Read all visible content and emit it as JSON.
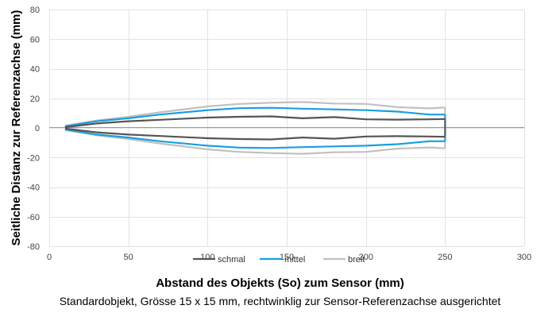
{
  "chart_data": {
    "type": "line",
    "xlabel": "Abstand des Objekts (So) zum Sensor (mm)",
    "ylabel": "Seitliche Distanz zur Referenzachse (mm)",
    "caption": "Standardobjekt, Grösse 15 x 15 mm, rechtwinklig zur Sensor-Referenzachse ausgerichtet",
    "xlim": [
      0,
      300
    ],
    "ylim": [
      -80,
      80
    ],
    "xticks": [
      "0",
      "50",
      "100",
      "150",
      "200",
      "250",
      "300"
    ],
    "yticks": [
      "80",
      "60",
      "40",
      "20",
      "0",
      "-20",
      "-40",
      "-60",
      "-80"
    ],
    "grid": true,
    "legend_position": "bottom",
    "series": [
      {
        "name": "schmal",
        "color": "#555555",
        "upper": [
          [
            10,
            0.5
          ],
          [
            30,
            3
          ],
          [
            50,
            4.5
          ],
          [
            70,
            5.5
          ],
          [
            100,
            7
          ],
          [
            120,
            7.5
          ],
          [
            140,
            7.8
          ],
          [
            160,
            6.5
          ],
          [
            180,
            7.3
          ],
          [
            200,
            5.8
          ],
          [
            220,
            5.6
          ],
          [
            240,
            5.8
          ],
          [
            250,
            6
          ]
        ],
        "lower": [
          [
            10,
            -0.5
          ],
          [
            30,
            -3
          ],
          [
            50,
            -4.5
          ],
          [
            70,
            -5.5
          ],
          [
            100,
            -7
          ],
          [
            120,
            -7.5
          ],
          [
            140,
            -7.8
          ],
          [
            160,
            -6.5
          ],
          [
            180,
            -7.3
          ],
          [
            200,
            -5.8
          ],
          [
            220,
            -5.6
          ],
          [
            240,
            -5.8
          ],
          [
            250,
            -6
          ]
        ]
      },
      {
        "name": "mittel",
        "color": "#1a9ee0",
        "upper": [
          [
            10,
            1
          ],
          [
            30,
            4.5
          ],
          [
            50,
            6.5
          ],
          [
            70,
            9
          ],
          [
            100,
            12
          ],
          [
            120,
            13.3
          ],
          [
            140,
            13.6
          ],
          [
            160,
            13
          ],
          [
            180,
            12.5
          ],
          [
            200,
            12
          ],
          [
            220,
            11
          ],
          [
            240,
            9
          ],
          [
            250,
            9
          ]
        ],
        "lower": [
          [
            10,
            -1
          ],
          [
            30,
            -4.5
          ],
          [
            50,
            -6.5
          ],
          [
            70,
            -9
          ],
          [
            100,
            -12
          ],
          [
            120,
            -13.3
          ],
          [
            140,
            -13.6
          ],
          [
            160,
            -13
          ],
          [
            180,
            -12.5
          ],
          [
            200,
            -12
          ],
          [
            220,
            -11
          ],
          [
            240,
            -9
          ],
          [
            250,
            -9
          ]
        ]
      },
      {
        "name": "breit",
        "color": "#c0c0c0",
        "upper": [
          [
            10,
            1.5
          ],
          [
            30,
            5
          ],
          [
            50,
            7.5
          ],
          [
            70,
            10.5
          ],
          [
            100,
            14.5
          ],
          [
            120,
            16.2
          ],
          [
            140,
            17
          ],
          [
            160,
            17.5
          ],
          [
            180,
            16.5
          ],
          [
            200,
            16.2
          ],
          [
            220,
            14
          ],
          [
            240,
            13.2
          ],
          [
            250,
            13.8
          ]
        ],
        "lower": [
          [
            10,
            -1.5
          ],
          [
            30,
            -5
          ],
          [
            50,
            -7.5
          ],
          [
            70,
            -10.5
          ],
          [
            100,
            -14.5
          ],
          [
            120,
            -16.2
          ],
          [
            140,
            -17
          ],
          [
            160,
            -17.5
          ],
          [
            180,
            -16.5
          ],
          [
            200,
            -16.2
          ],
          [
            220,
            -14
          ],
          [
            240,
            -13.2
          ],
          [
            250,
            -13.8
          ]
        ]
      }
    ]
  }
}
